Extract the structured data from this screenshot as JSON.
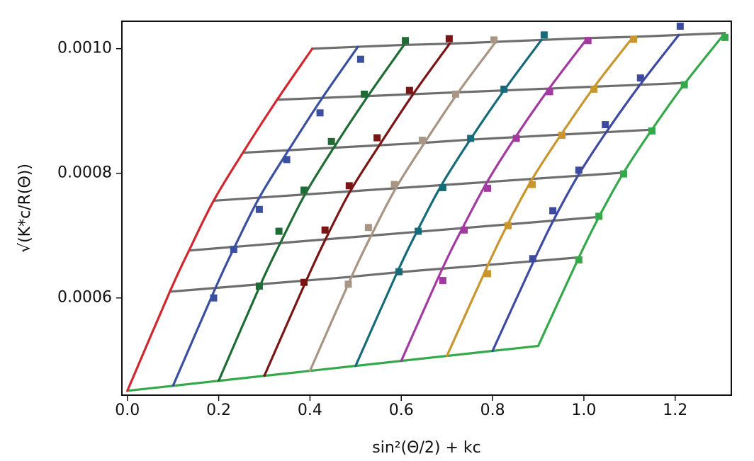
{
  "chart_data": {
    "type": "line",
    "xlabel": "sin²(Θ/2) + kc",
    "ylabel": "√(K*c/R(Θ))",
    "xlim": [
      -0.012,
      1.323
    ],
    "ylim": [
      0.000444,
      0.001044
    ],
    "xticks": [
      {
        "value": 0,
        "label": "0.0"
      },
      0.2,
      0.4,
      0.6,
      0.8,
      {
        "value": 1,
        "label": "1.0"
      },
      1.2
    ],
    "yticks": [
      {
        "value": 0.0006,
        "label": "0.0006"
      },
      {
        "value": 0.0008,
        "label": "0.0008"
      },
      {
        "value": 0.001,
        "label": "0.0010"
      }
    ],
    "series": [
      {
        "mode": "lines",
        "color": "#6e6e6e",
        "x": [
          0.405,
          0.505,
          0.606,
          0.706,
          0.807,
          0.907,
          1.008,
          1.108,
          1.208,
          1.309
        ],
        "y": [
          0.001,
          0.001003,
          0.001006,
          0.001008,
          0.001011,
          0.001014,
          0.001017,
          0.001019,
          0.001022,
          0.001025
        ]
      },
      {
        "mode": "lines",
        "color": "#6e6e6e",
        "x": [
          0.328,
          0.427,
          0.527,
          0.626,
          0.725,
          0.825,
          0.924,
          1.023,
          1.123,
          1.222
        ],
        "y": [
          0.000918,
          0.000921,
          0.000924,
          0.000927,
          0.00093,
          0.000933,
          0.000936,
          0.000939,
          0.000942,
          0.000945
        ]
      },
      {
        "mode": "lines",
        "color": "#6e6e6e",
        "x": [
          0.253,
          0.353,
          0.452,
          0.552,
          0.651,
          0.751,
          0.85,
          0.95,
          1.049,
          1.149
        ],
        "y": [
          0.000833,
          0.000837,
          0.000841,
          0.000845,
          0.000849,
          0.000854,
          0.000858,
          0.000862,
          0.000866,
          0.00087
        ]
      },
      {
        "mode": "lines",
        "color": "#6e6e6e",
        "x": [
          0.189,
          0.289,
          0.389,
          0.488,
          0.588,
          0.688,
          0.788,
          0.887,
          0.987,
          1.087
        ],
        "y": [
          0.000756,
          0.000761,
          0.000766,
          0.000771,
          0.000776,
          0.000781,
          0.000786,
          0.000791,
          0.000796,
          0.000801
        ]
      },
      {
        "mode": "lines",
        "color": "#6e6e6e",
        "x": [
          0.135,
          0.235,
          0.335,
          0.434,
          0.534,
          0.634,
          0.734,
          0.833,
          0.933,
          1.033
        ],
        "y": [
          0.000676,
          0.000682,
          0.000688,
          0.000694,
          0.0007,
          0.000706,
          0.000712,
          0.000718,
          0.000724,
          0.00073
        ]
      },
      {
        "mode": "lines",
        "color": "#6e6e6e",
        "x": [
          0.093,
          0.193,
          0.292,
          0.392,
          0.491,
          0.591,
          0.69,
          0.79,
          0.89,
          0.989
        ],
        "y": [
          0.00061,
          0.000616,
          0.000622,
          0.000628,
          0.000634,
          0.000641,
          0.000647,
          0.000653,
          0.000659,
          0.000665
        ]
      },
      {
        "mode": "lines",
        "color": "#34a84a",
        "x": [
          0,
          0.1,
          0.2,
          0.3,
          0.4,
          0.5,
          0.6,
          0.7,
          0.8,
          0.9
        ],
        "y": [
          0.000451,
          0.000459,
          0.000467,
          0.000475,
          0.000483,
          0.000491,
          0.000499,
          0.000507,
          0.000515,
          0.000523
        ]
      },
      {
        "mode": "lines",
        "color": "#d0282e",
        "x": [
          0,
          0.093,
          0.135,
          0.189,
          0.253,
          0.328,
          0.405
        ],
        "y": [
          0.000451,
          0.00061,
          0.000676,
          0.000756,
          0.000833,
          0.000918,
          0.001
        ]
      },
      {
        "mode": "lines",
        "color": "#3a4fa0",
        "x": [
          0.1,
          0.193,
          0.235,
          0.289,
          0.353,
          0.427,
          0.505
        ],
        "y": [
          0.000459,
          0.000616,
          0.000682,
          0.000761,
          0.000837,
          0.000921,
          0.001003
        ]
      },
      {
        "mode": "lines",
        "color": "#1f6b35",
        "x": [
          0.2,
          0.292,
          0.335,
          0.389,
          0.452,
          0.527,
          0.606
        ],
        "y": [
          0.000467,
          0.000622,
          0.000688,
          0.000766,
          0.000841,
          0.000924,
          0.001006
        ]
      },
      {
        "mode": "lines",
        "color": "#7a1515",
        "x": [
          0.3,
          0.392,
          0.434,
          0.488,
          0.552,
          0.626,
          0.706
        ],
        "y": [
          0.000475,
          0.000628,
          0.000694,
          0.000771,
          0.000845,
          0.000927,
          0.001008
        ]
      },
      {
        "mode": "lines",
        "color": "#a89583",
        "x": [
          0.4,
          0.491,
          0.534,
          0.588,
          0.651,
          0.725,
          0.807
        ],
        "y": [
          0.000483,
          0.000634,
          0.0007,
          0.000776,
          0.000849,
          0.00093,
          0.001011
        ]
      },
      {
        "mode": "lines",
        "color": "#176a7a",
        "x": [
          0.5,
          0.591,
          0.634,
          0.688,
          0.751,
          0.825,
          0.907
        ],
        "y": [
          0.000491,
          0.000641,
          0.000706,
          0.000781,
          0.000854,
          0.000933,
          0.001014
        ]
      },
      {
        "mode": "lines",
        "color": "#a23ba0",
        "x": [
          0.6,
          0.69,
          0.734,
          0.788,
          0.85,
          0.924,
          1.008
        ],
        "y": [
          0.000499,
          0.000647,
          0.000712,
          0.000786,
          0.000858,
          0.000936,
          0.001017
        ]
      },
      {
        "mode": "lines",
        "color": "#c9962e",
        "x": [
          0.7,
          0.79,
          0.833,
          0.887,
          0.95,
          1.023,
          1.108
        ],
        "y": [
          0.000507,
          0.000653,
          0.000718,
          0.000791,
          0.000862,
          0.000939,
          0.001019
        ]
      },
      {
        "mode": "lines",
        "color": "#3d4aa0",
        "x": [
          0.8,
          0.89,
          0.933,
          0.987,
          1.049,
          1.123,
          1.208
        ],
        "y": [
          0.000515,
          0.000659,
          0.000724,
          0.000796,
          0.000866,
          0.000942,
          0.001022
        ]
      },
      {
        "mode": "lines",
        "color": "#34a84a",
        "x": [
          0.9,
          0.989,
          1.033,
          1.087,
          1.149,
          1.222,
          1.309
        ],
        "y": [
          0.000523,
          0.000665,
          0.00073,
          0.000801,
          0.00087,
          0.000945,
          0.001025
        ]
      },
      {
        "mode": "markers",
        "color": "#3a4fa0",
        "x": [
          0.511,
          0.422,
          0.349,
          0.289,
          0.233,
          0.189
        ],
        "y": [
          0.000983,
          0.000897,
          0.000822,
          0.000742,
          0.000678,
          0.0006
        ]
      },
      {
        "mode": "markers",
        "color": "#1f6b35",
        "x": [
          0.609,
          0.519,
          0.447,
          0.387,
          0.332,
          0.289
        ],
        "y": [
          0.001013,
          0.000927,
          0.000851,
          0.000773,
          0.000707,
          0.000619
        ]
      },
      {
        "mode": "markers",
        "color": "#7a1515",
        "x": [
          0.705,
          0.618,
          0.547,
          0.486,
          0.433,
          0.387
        ],
        "y": [
          0.001016,
          0.000933,
          0.000857,
          0.00078,
          0.000709,
          0.000625
        ]
      },
      {
        "mode": "markers",
        "color": "#a89583",
        "x": [
          0.803,
          0.719,
          0.646,
          0.585,
          0.528,
          0.484
        ],
        "y": [
          0.001014,
          0.000927,
          0.000853,
          0.000782,
          0.000713,
          0.000622
        ]
      },
      {
        "mode": "markers",
        "color": "#176a7a",
        "x": [
          0.913,
          0.825,
          0.752,
          0.691,
          0.637,
          0.595
        ],
        "y": [
          0.001022,
          0.000935,
          0.000856,
          0.000777,
          0.000707,
          0.000642
        ]
      },
      {
        "mode": "markers",
        "color": "#a23ba0",
        "x": [
          1.009,
          0.925,
          0.852,
          0.789,
          0.738,
          0.691
        ],
        "y": [
          0.001013,
          0.000931,
          0.000856,
          0.000776,
          0.000709,
          0.000628
        ]
      },
      {
        "mode": "markers",
        "color": "#c9962e",
        "x": [
          1.109,
          1.022,
          0.952,
          0.887,
          0.834,
          0.789
        ],
        "y": [
          0.001015,
          0.000935,
          0.000861,
          0.000782,
          0.000716,
          0.000639
        ]
      },
      {
        "mode": "markers",
        "color": "#3d4aa0",
        "x": [
          1.211,
          1.124,
          1.047,
          0.989,
          0.932,
          0.888
        ],
        "y": [
          0.001036,
          0.000953,
          0.000878,
          0.000805,
          0.00074,
          0.000663
        ]
      },
      {
        "mode": "markers",
        "color": "#34a84a",
        "x": [
          1.309,
          1.22,
          1.149,
          1.087,
          1.033,
          0.989
        ],
        "y": [
          0.001018,
          0.000942,
          0.000868,
          0.000799,
          0.000731,
          0.000661
        ]
      }
    ]
  }
}
